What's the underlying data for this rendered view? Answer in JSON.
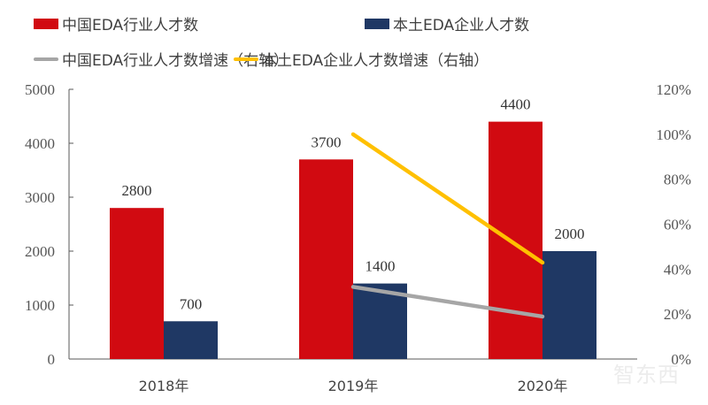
{
  "chart_data": {
    "type": "bar+line",
    "categories": [
      "2018年",
      "2019年",
      "2020年"
    ],
    "series": [
      {
        "name": "中国EDA行业人才数",
        "type": "bar",
        "axis": "left",
        "color": "#D10A11",
        "values": [
          2800,
          3700,
          4400
        ]
      },
      {
        "name": "本土EDA企业人才数",
        "type": "bar",
        "axis": "left",
        "color": "#1F3864",
        "values": [
          700,
          1400,
          2000
        ]
      },
      {
        "name": "中国EDA行业人才数增速（右轴）",
        "type": "line",
        "axis": "right",
        "color": "#A6A6A6",
        "values": [
          null,
          32.1,
          18.9
        ]
      },
      {
        "name": "本土EDA企业人才数增速（右轴）",
        "type": "line",
        "axis": "right",
        "color": "#FFC000",
        "values": [
          null,
          100,
          42.9
        ]
      }
    ],
    "left_axis": {
      "ylim": [
        0,
        5000
      ],
      "ticks": [
        "0",
        "1000",
        "2000",
        "3000",
        "4000",
        "5000"
      ]
    },
    "right_axis": {
      "ylim": [
        0,
        120
      ],
      "unit": "%",
      "ticks": [
        "0%",
        "20%",
        "40%",
        "60%",
        "80%",
        "100%",
        "120%"
      ]
    },
    "data_labels": [
      "2800",
      "700",
      "3700",
      "1400",
      "4400",
      "2000"
    ],
    "grid": false,
    "legend_placement": "top"
  },
  "watermark": "智东西"
}
